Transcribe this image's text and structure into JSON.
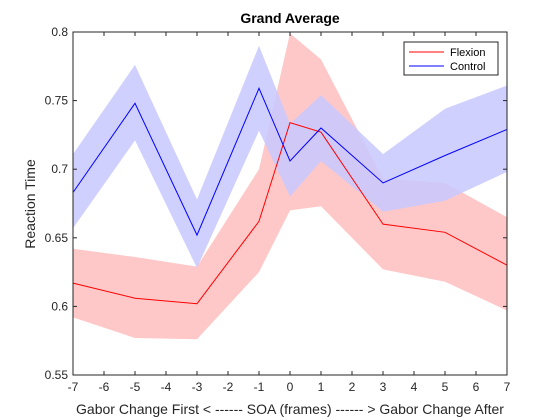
{
  "chart_data": {
    "type": "line",
    "title": "Grand Average",
    "xlabel": "Gabor Change First < ------ SOA (frames) ------ > Gabor Change After",
    "ylabel": "Reaction Time",
    "xlim": [
      -7,
      7
    ],
    "ylim": [
      0.55,
      0.8
    ],
    "xticks": [
      -7,
      -6,
      -5,
      -4,
      -3,
      -2,
      -1,
      0,
      1,
      2,
      3,
      4,
      5,
      6,
      7
    ],
    "yticks": [
      0.55,
      0.6,
      0.65,
      0.7,
      0.75,
      0.8
    ],
    "ytick_labels": [
      "0.55",
      "0.6",
      "0.65",
      "0.7",
      "0.75",
      "0.8"
    ],
    "grid": false,
    "legend_position": "top-right",
    "series": [
      {
        "name": "Flexion",
        "color": "#ff0000",
        "band_color": "#ffc8c8",
        "x": [
          -7,
          -5,
          -3,
          -1,
          0,
          1,
          3,
          5,
          7
        ],
        "values": [
          0.617,
          0.606,
          0.602,
          0.662,
          0.734,
          0.727,
          0.66,
          0.654,
          0.63
        ],
        "upper": [
          0.642,
          0.636,
          0.629,
          0.7,
          0.799,
          0.78,
          0.693,
          0.69,
          0.665
        ],
        "lower": [
          0.592,
          0.577,
          0.576,
          0.625,
          0.67,
          0.673,
          0.627,
          0.618,
          0.597
        ]
      },
      {
        "name": "Control",
        "color": "#0000ff",
        "band_color": "#c8c8ff",
        "x": [
          -7,
          -5,
          -3,
          -1,
          0,
          1,
          3,
          5,
          7
        ],
        "values": [
          0.683,
          0.748,
          0.652,
          0.759,
          0.706,
          0.73,
          0.69,
          0.71,
          0.729
        ],
        "upper": [
          0.711,
          0.776,
          0.678,
          0.79,
          0.733,
          0.754,
          0.711,
          0.744,
          0.761
        ],
        "lower": [
          0.657,
          0.721,
          0.628,
          0.728,
          0.68,
          0.706,
          0.669,
          0.677,
          0.698
        ]
      }
    ]
  }
}
